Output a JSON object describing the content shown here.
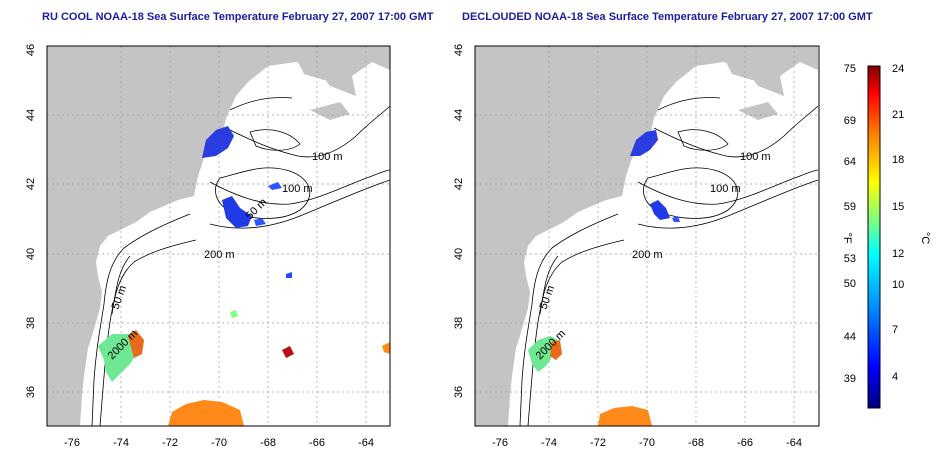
{
  "panels": [
    {
      "title": "RU COOL NOAA-18 Sea Surface Temperature February 27, 2007 17:00 GMT"
    },
    {
      "title": "DECLOUDED NOAA-18 Sea Surface Temperature February 27, 2007 17:00 GMT"
    }
  ],
  "map": {
    "lon_ticks": [
      "-76",
      "-74",
      "-72",
      "-70",
      "-68",
      "-66",
      "-64"
    ],
    "lat_ticks": [
      "36",
      "38",
      "40",
      "42",
      "44",
      "46"
    ],
    "lon_range": [
      -77,
      -63
    ],
    "lat_range": [
      35,
      46
    ],
    "contour_labels": [
      "100 m",
      "100 m",
      "50 m",
      "200 m",
      "50 m",
      "2000 m"
    ],
    "land_color": "#c4c4c4",
    "ocean_color": "#ffffff",
    "grid": "dotted"
  },
  "colorbar": {
    "f_label": "°F",
    "c_label": "°C",
    "f_ticks": [
      "75",
      "69",
      "64",
      "59",
      "53",
      "50",
      "44",
      "39"
    ],
    "c_ticks": [
      "24",
      "21",
      "18",
      "15",
      "12",
      "10",
      "7",
      "4"
    ],
    "colors": [
      "#000080",
      "#0000ff",
      "#0080ff",
      "#00ffff",
      "#80ff80",
      "#ffff00",
      "#ff8000",
      "#ff0000",
      "#800000"
    ]
  }
}
